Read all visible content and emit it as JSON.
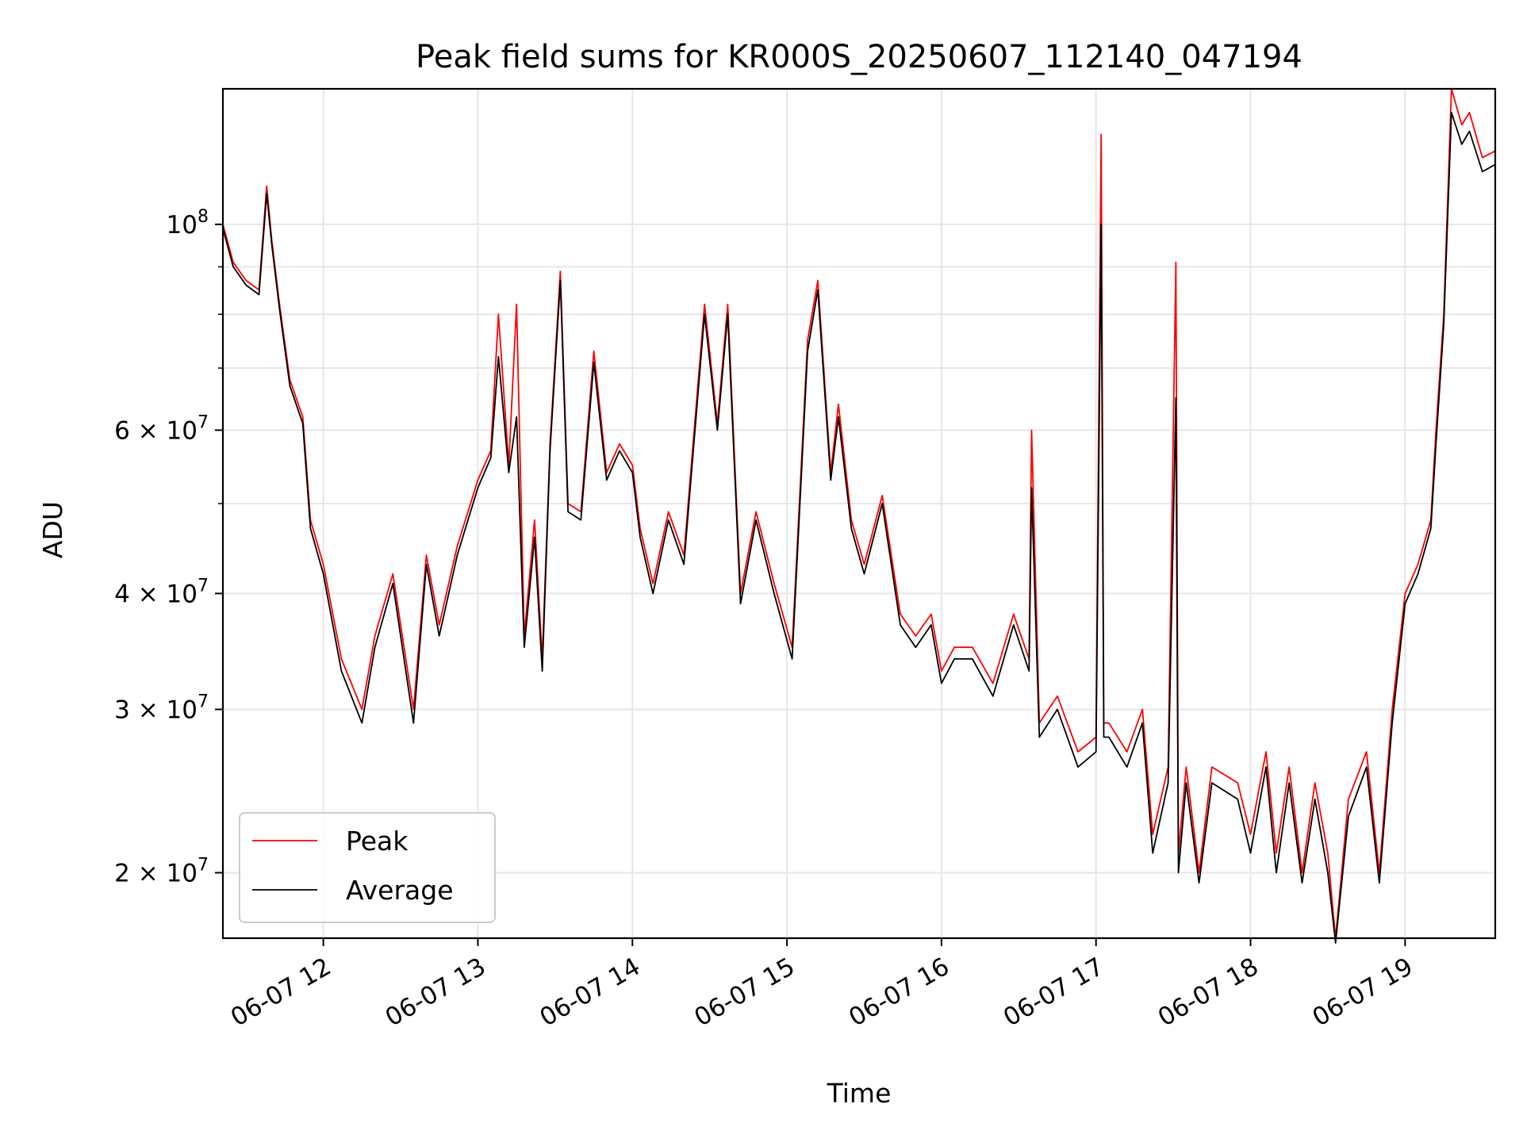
{
  "chart_data": {
    "type": "line",
    "title": "Peak field sums for KR000S_20250607_112140_047194",
    "xlabel": "Time",
    "ylabel": "ADU",
    "y_scale": "log",
    "grid": true,
    "legend_position": "lower-left",
    "xlim": [
      "2025-06-07 11:21",
      "2025-06-07 19:35"
    ],
    "ylim": [
      17000000,
      140000000
    ],
    "x_ticks": [
      {
        "value": "2025-06-07 12:00",
        "label": "06-07 12"
      },
      {
        "value": "2025-06-07 13:00",
        "label": "06-07 13"
      },
      {
        "value": "2025-06-07 14:00",
        "label": "06-07 14"
      },
      {
        "value": "2025-06-07 15:00",
        "label": "06-07 15"
      },
      {
        "value": "2025-06-07 16:00",
        "label": "06-07 16"
      },
      {
        "value": "2025-06-07 17:00",
        "label": "06-07 17"
      },
      {
        "value": "2025-06-07 18:00",
        "label": "06-07 18"
      },
      {
        "value": "2025-06-07 19:00",
        "label": "06-07 19"
      }
    ],
    "y_ticks": [
      {
        "value": 100000000,
        "base": "10",
        "exp": "8"
      },
      {
        "value": 60000000,
        "base": "6 × 10",
        "exp": "7"
      },
      {
        "value": 40000000,
        "base": "4 × 10",
        "exp": "7"
      },
      {
        "value": 30000000,
        "base": "3 × 10",
        "exp": "7"
      },
      {
        "value": 20000000,
        "base": "2 × 10",
        "exp": "7"
      }
    ],
    "y_minor_ticks": [
      50000000,
      70000000,
      80000000,
      90000000
    ],
    "series": [
      {
        "name": "Peak",
        "color": "#ff0000",
        "x": [
          "2025-06-07 11:21",
          "2025-06-07 11:25",
          "2025-06-07 11:30",
          "2025-06-07 11:35",
          "2025-06-07 11:38",
          "2025-06-07 11:40",
          "2025-06-07 11:43",
          "2025-06-07 11:47",
          "2025-06-07 11:52",
          "2025-06-07 11:55",
          "2025-06-07 12:00",
          "2025-06-07 12:07",
          "2025-06-07 12:15",
          "2025-06-07 12:20",
          "2025-06-07 12:27",
          "2025-06-07 12:35",
          "2025-06-07 12:40",
          "2025-06-07 12:45",
          "2025-06-07 12:52",
          "2025-06-07 13:00",
          "2025-06-07 13:05",
          "2025-06-07 13:08",
          "2025-06-07 13:12",
          "2025-06-07 13:15",
          "2025-06-07 13:18",
          "2025-06-07 13:22",
          "2025-06-07 13:25",
          "2025-06-07 13:28",
          "2025-06-07 13:32",
          "2025-06-07 13:35",
          "2025-06-07 13:40",
          "2025-06-07 13:45",
          "2025-06-07 13:50",
          "2025-06-07 13:55",
          "2025-06-07 14:00",
          "2025-06-07 14:03",
          "2025-06-07 14:08",
          "2025-06-07 14:14",
          "2025-06-07 14:20",
          "2025-06-07 14:28",
          "2025-06-07 14:33",
          "2025-06-07 14:37",
          "2025-06-07 14:42",
          "2025-06-07 14:48",
          "2025-06-07 14:55",
          "2025-06-07 15:02",
          "2025-06-07 15:08",
          "2025-06-07 15:12",
          "2025-06-07 15:17",
          "2025-06-07 15:20",
          "2025-06-07 15:25",
          "2025-06-07 15:30",
          "2025-06-07 15:37",
          "2025-06-07 15:44",
          "2025-06-07 15:50",
          "2025-06-07 15:56",
          "2025-06-07 16:00",
          "2025-06-07 16:05",
          "2025-06-07 16:12",
          "2025-06-07 16:20",
          "2025-06-07 16:28",
          "2025-06-07 16:34",
          "2025-06-07 16:35",
          "2025-06-07 16:38",
          "2025-06-07 16:45",
          "2025-06-07 16:53",
          "2025-06-07 17:00",
          "2025-06-07 17:02",
          "2025-06-07 17:03",
          "2025-06-07 17:05",
          "2025-06-07 17:12",
          "2025-06-07 17:18",
          "2025-06-07 17:22",
          "2025-06-07 17:28",
          "2025-06-07 17:31",
          "2025-06-07 17:32",
          "2025-06-07 17:35",
          "2025-06-07 17:40",
          "2025-06-07 17:45",
          "2025-06-07 17:55",
          "2025-06-07 18:00",
          "2025-06-07 18:06",
          "2025-06-07 18:10",
          "2025-06-07 18:15",
          "2025-06-07 18:20",
          "2025-06-07 18:25",
          "2025-06-07 18:30",
          "2025-06-07 18:33",
          "2025-06-07 18:38",
          "2025-06-07 18:45",
          "2025-06-07 18:50",
          "2025-06-07 18:55",
          "2025-06-07 19:00",
          "2025-06-07 19:05",
          "2025-06-07 19:10",
          "2025-06-07 19:12",
          "2025-06-07 19:15",
          "2025-06-07 19:18",
          "2025-06-07 19:22",
          "2025-06-07 19:25",
          "2025-06-07 19:30",
          "2025-06-07 19:35"
        ],
        "values": [
          100000000,
          91000000,
          87000000,
          85000000,
          110000000,
          96000000,
          82000000,
          68000000,
          62000000,
          48000000,
          43000000,
          34000000,
          30000000,
          36000000,
          42000000,
          30000000,
          44000000,
          37000000,
          45000000,
          53000000,
          57000000,
          80000000,
          55000000,
          82000000,
          36000000,
          48000000,
          34000000,
          58000000,
          89000000,
          50000000,
          49000000,
          73000000,
          54000000,
          58000000,
          55000000,
          47000000,
          41000000,
          49000000,
          44000000,
          82000000,
          61000000,
          82000000,
          40000000,
          49000000,
          41000000,
          35000000,
          75000000,
          87000000,
          54000000,
          64000000,
          48000000,
          43000000,
          51000000,
          38000000,
          36000000,
          38000000,
          33000000,
          35000000,
          35000000,
          32000000,
          38000000,
          34000000,
          60000000,
          29000000,
          31000000,
          27000000,
          28000000,
          125000000,
          29000000,
          29000000,
          27000000,
          30000000,
          22000000,
          26000000,
          91000000,
          21000000,
          26000000,
          20000000,
          26000000,
          25000000,
          22000000,
          27000000,
          21000000,
          26000000,
          20000000,
          25000000,
          21000000,
          17000000,
          24000000,
          27000000,
          20000000,
          30000000,
          40000000,
          43000000,
          48000000,
          60000000,
          80000000,
          140000000,
          128000000,
          132000000,
          118000000,
          120000000
        ]
      },
      {
        "name": "Average",
        "color": "#000000",
        "x": [
          "2025-06-07 11:21",
          "2025-06-07 11:25",
          "2025-06-07 11:30",
          "2025-06-07 11:35",
          "2025-06-07 11:38",
          "2025-06-07 11:40",
          "2025-06-07 11:43",
          "2025-06-07 11:47",
          "2025-06-07 11:52",
          "2025-06-07 11:55",
          "2025-06-07 12:00",
          "2025-06-07 12:07",
          "2025-06-07 12:15",
          "2025-06-07 12:20",
          "2025-06-07 12:27",
          "2025-06-07 12:35",
          "2025-06-07 12:40",
          "2025-06-07 12:45",
          "2025-06-07 12:52",
          "2025-06-07 13:00",
          "2025-06-07 13:05",
          "2025-06-07 13:08",
          "2025-06-07 13:12",
          "2025-06-07 13:15",
          "2025-06-07 13:18",
          "2025-06-07 13:22",
          "2025-06-07 13:25",
          "2025-06-07 13:28",
          "2025-06-07 13:32",
          "2025-06-07 13:35",
          "2025-06-07 13:40",
          "2025-06-07 13:45",
          "2025-06-07 13:50",
          "2025-06-07 13:55",
          "2025-06-07 14:00",
          "2025-06-07 14:03",
          "2025-06-07 14:08",
          "2025-06-07 14:14",
          "2025-06-07 14:20",
          "2025-06-07 14:28",
          "2025-06-07 14:33",
          "2025-06-07 14:37",
          "2025-06-07 14:42",
          "2025-06-07 14:48",
          "2025-06-07 14:55",
          "2025-06-07 15:02",
          "2025-06-07 15:08",
          "2025-06-07 15:12",
          "2025-06-07 15:17",
          "2025-06-07 15:20",
          "2025-06-07 15:25",
          "2025-06-07 15:30",
          "2025-06-07 15:37",
          "2025-06-07 15:44",
          "2025-06-07 15:50",
          "2025-06-07 15:56",
          "2025-06-07 16:00",
          "2025-06-07 16:05",
          "2025-06-07 16:12",
          "2025-06-07 16:20",
          "2025-06-07 16:28",
          "2025-06-07 16:34",
          "2025-06-07 16:35",
          "2025-06-07 16:38",
          "2025-06-07 16:45",
          "2025-06-07 16:53",
          "2025-06-07 17:00",
          "2025-06-07 17:02",
          "2025-06-07 17:03",
          "2025-06-07 17:05",
          "2025-06-07 17:12",
          "2025-06-07 17:18",
          "2025-06-07 17:22",
          "2025-06-07 17:28",
          "2025-06-07 17:31",
          "2025-06-07 17:32",
          "2025-06-07 17:35",
          "2025-06-07 17:40",
          "2025-06-07 17:45",
          "2025-06-07 17:55",
          "2025-06-07 18:00",
          "2025-06-07 18:06",
          "2025-06-07 18:10",
          "2025-06-07 18:15",
          "2025-06-07 18:20",
          "2025-06-07 18:25",
          "2025-06-07 18:30",
          "2025-06-07 18:33",
          "2025-06-07 18:38",
          "2025-06-07 18:45",
          "2025-06-07 18:50",
          "2025-06-07 18:55",
          "2025-06-07 19:00",
          "2025-06-07 19:05",
          "2025-06-07 19:10",
          "2025-06-07 19:12",
          "2025-06-07 19:15",
          "2025-06-07 19:18",
          "2025-06-07 19:22",
          "2025-06-07 19:25",
          "2025-06-07 19:30",
          "2025-06-07 19:35"
        ],
        "values": [
          99000000,
          90000000,
          86000000,
          84000000,
          108000000,
          95000000,
          81000000,
          67000000,
          61000000,
          47000000,
          42000000,
          33000000,
          29000000,
          35000000,
          41000000,
          29000000,
          43000000,
          36000000,
          44000000,
          52000000,
          56000000,
          72000000,
          54000000,
          62000000,
          35000000,
          46000000,
          33000000,
          57000000,
          87000000,
          49000000,
          48000000,
          71000000,
          53000000,
          57000000,
          54000000,
          46000000,
          40000000,
          48000000,
          43000000,
          80000000,
          60000000,
          80000000,
          39000000,
          48000000,
          40000000,
          34000000,
          73000000,
          85000000,
          53000000,
          62000000,
          47000000,
          42000000,
          50000000,
          37000000,
          35000000,
          37000000,
          32000000,
          34000000,
          34000000,
          31000000,
          37000000,
          33000000,
          52000000,
          28000000,
          30000000,
          26000000,
          27000000,
          100000000,
          28000000,
          28000000,
          26000000,
          29000000,
          21000000,
          25000000,
          65000000,
          20000000,
          25000000,
          19500000,
          25000000,
          24000000,
          21000000,
          26000000,
          20000000,
          25000000,
          19500000,
          24000000,
          20000000,
          16800000,
          23000000,
          26000000,
          19500000,
          29000000,
          39000000,
          42000000,
          47000000,
          58000000,
          78000000,
          132000000,
          122000000,
          126000000,
          114000000,
          116000000
        ]
      }
    ]
  }
}
